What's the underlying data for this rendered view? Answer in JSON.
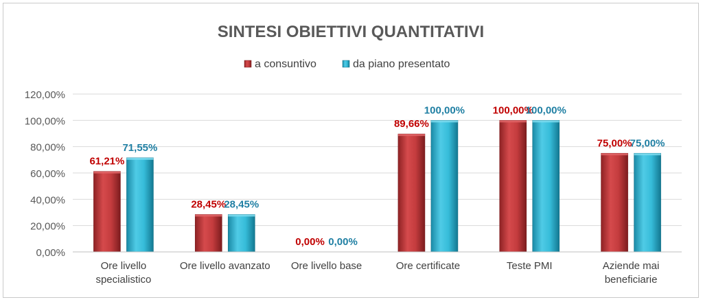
{
  "chart_data": {
    "type": "bar",
    "title": "SINTESI OBIETTIVI QUANTITATIVI",
    "categories": [
      [
        "Ore livello",
        "specialistico"
      ],
      [
        "Ore livello avanzato"
      ],
      [
        "Ore livello base"
      ],
      [
        "Ore certificate"
      ],
      [
        "Teste PMI"
      ],
      [
        "Aziende mai",
        "beneficiarie"
      ]
    ],
    "series": [
      {
        "name": "a consuntivo",
        "color": "#c0393b",
        "label_color": "#c00000",
        "values": [
          61.21,
          28.45,
          0,
          89.66,
          100,
          75
        ],
        "labels": [
          "61,21%",
          "28,45%",
          "0,00%",
          "89,66%",
          "100,00%",
          "75,00%"
        ]
      },
      {
        "name": "da piano presentato",
        "color": "#2fb8d6",
        "label_color": "#1f7fa3",
        "values": [
          71.55,
          28.45,
          0,
          100,
          100,
          75
        ],
        "labels": [
          "71,55%",
          "28,45%",
          "0,00%",
          "100,00%",
          "100,00%",
          "75,00%"
        ]
      }
    ],
    "yticks": [
      0,
      20,
      40,
      60,
      80,
      100,
      120
    ],
    "ytick_labels": [
      "0,00%",
      "20,00%",
      "40,00%",
      "60,00%",
      "80,00%",
      "100,00%",
      "120,00%"
    ],
    "ylim": [
      0,
      120
    ],
    "grid": true,
    "legend_position": "top-center"
  }
}
